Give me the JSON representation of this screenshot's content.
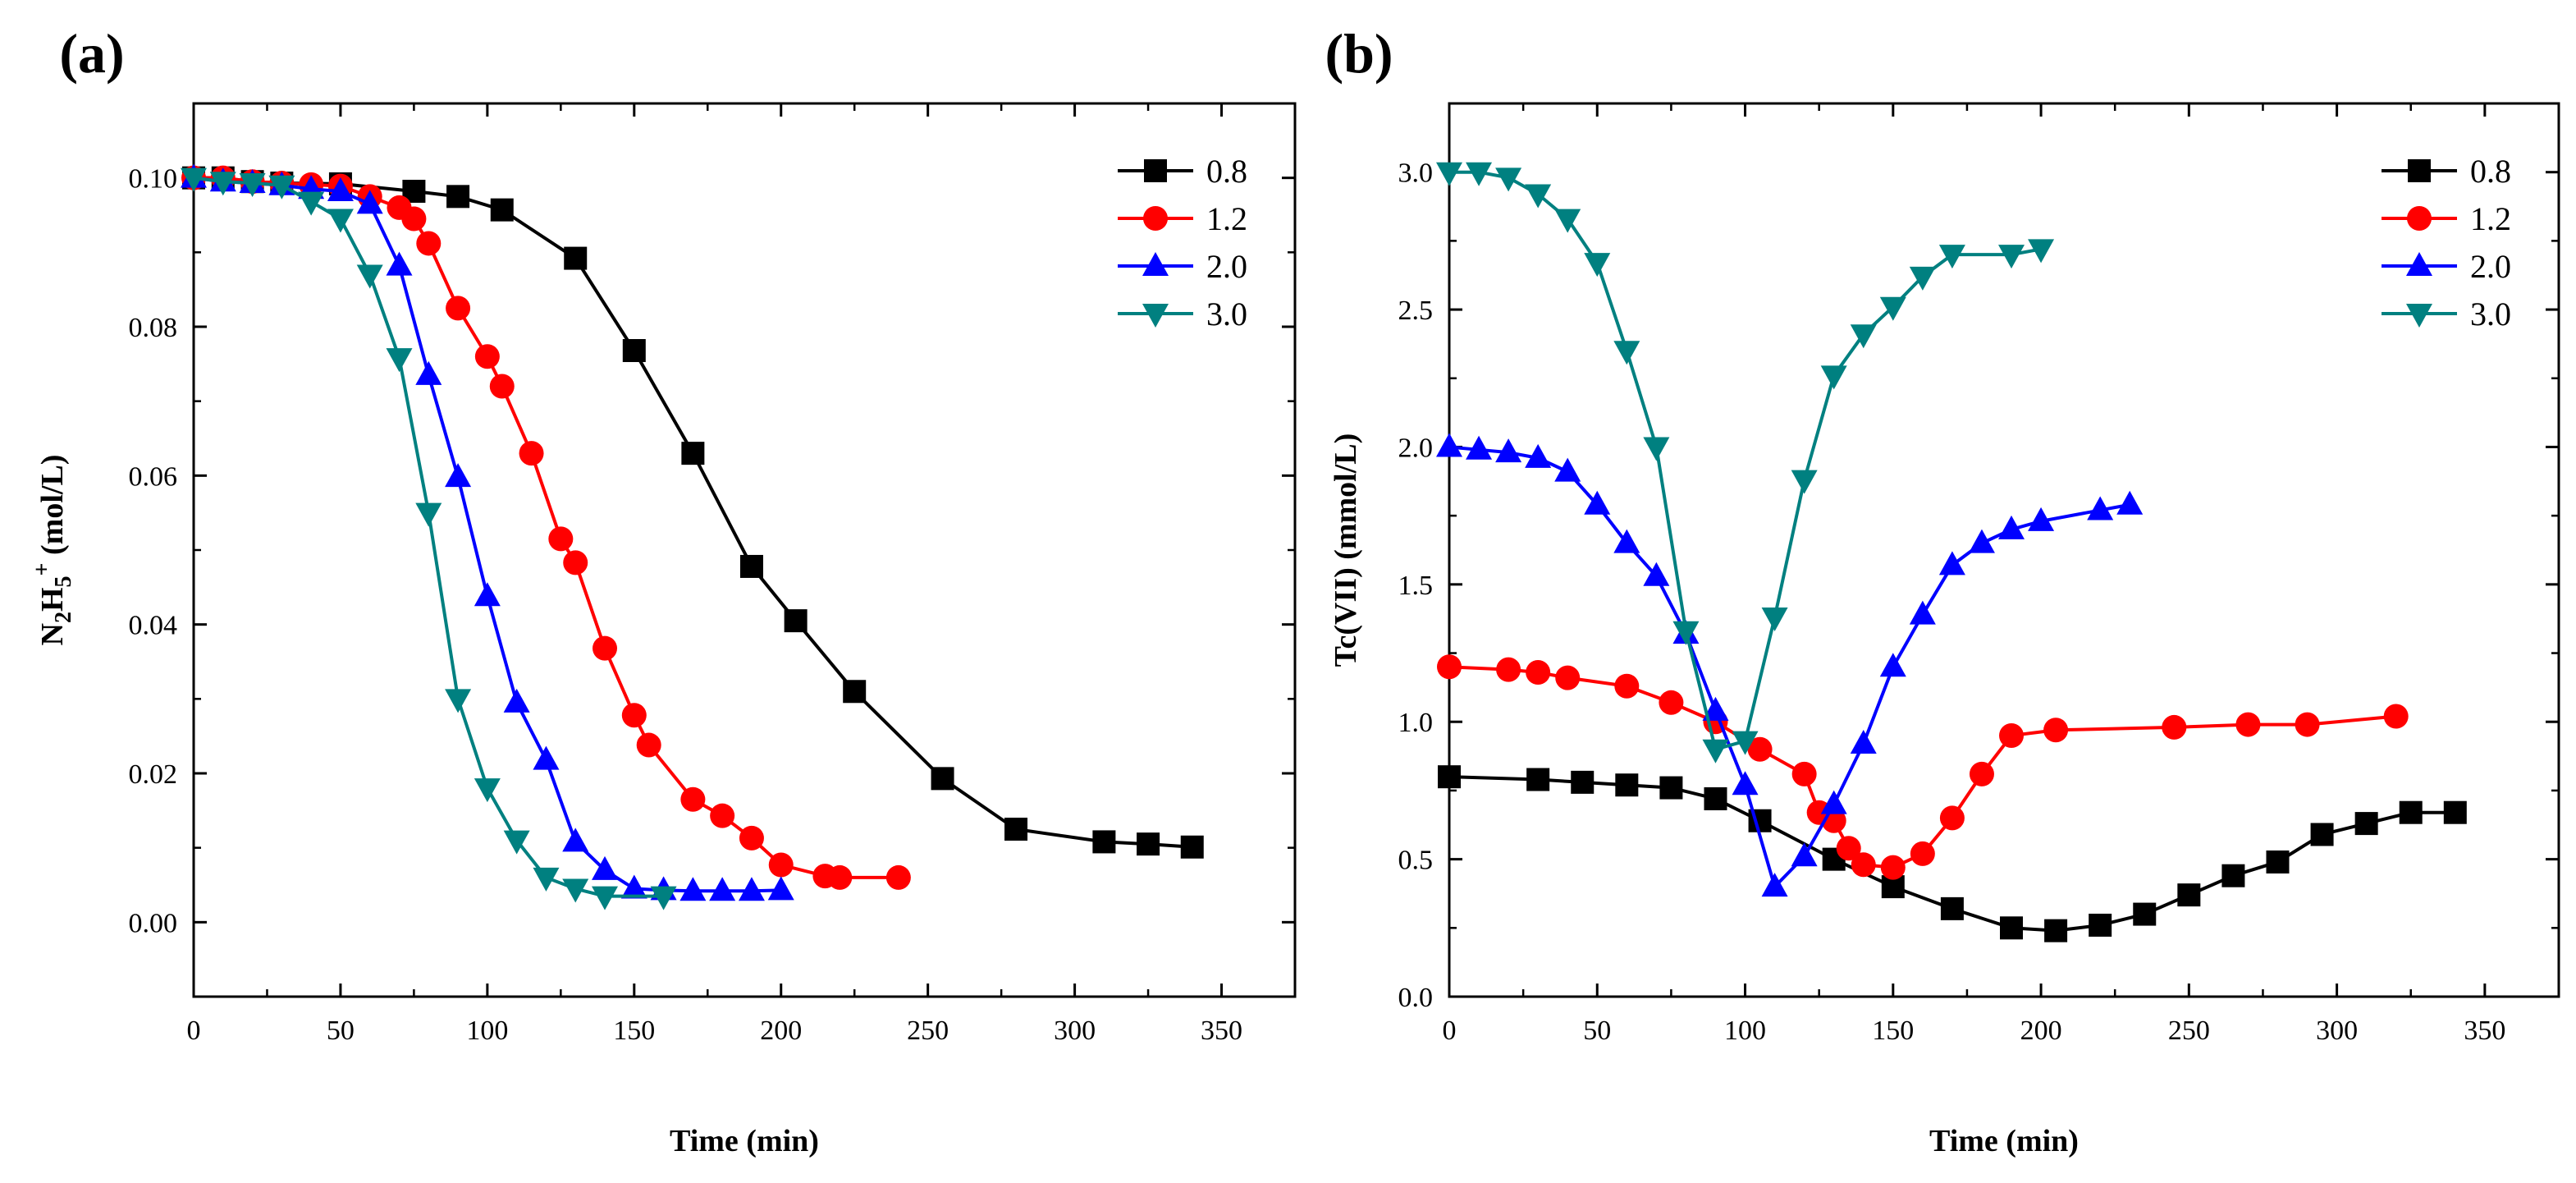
{
  "chart_data": [
    {
      "panel_label": "(a)",
      "type": "line",
      "xlabel": "Time (min)",
      "ylabel": "N2H5+ (mol/L)",
      "ylabel_parts": {
        "base1": "N",
        "sub1": "2",
        "base2": "H",
        "sub2": "5",
        "sup": "+",
        "unit": " (mol/L)"
      },
      "xlim": [
        0,
        375
      ],
      "ylim": [
        -0.01,
        0.11
      ],
      "xticks": [
        0,
        50,
        100,
        150,
        200,
        250,
        300,
        350
      ],
      "xtick_labels": [
        "0",
        "50",
        "100",
        "150",
        "200",
        "250",
        "300",
        "350"
      ],
      "yticks": [
        0.0,
        0.02,
        0.04,
        0.06,
        0.08,
        0.1
      ],
      "ytick_labels": [
        "0.00",
        "0.02",
        "0.04",
        "0.06",
        "0.08",
        "0.10"
      ],
      "legend_position": "top-right",
      "series": [
        {
          "name": "0.8",
          "color": "#000000",
          "marker": "square",
          "x": [
            0,
            10,
            20,
            30,
            50,
            75,
            90,
            105,
            130,
            150,
            170,
            190,
            205,
            225,
            255,
            280,
            310,
            325,
            340
          ],
          "y": [
            0.1,
            0.1,
            0.0995,
            0.0993,
            0.0992,
            0.0982,
            0.0975,
            0.0957,
            0.0892,
            0.0768,
            0.063,
            0.0478,
            0.0405,
            0.031,
            0.0193,
            0.0125,
            0.0108,
            0.0105,
            0.0101
          ]
        },
        {
          "name": "1.2",
          "color": "#ff0000",
          "marker": "circle",
          "x": [
            0,
            10,
            20,
            30,
            40,
            50,
            60,
            70,
            75,
            80,
            90,
            100,
            105,
            115,
            125,
            130,
            140,
            150,
            155,
            170,
            180,
            190,
            200,
            215,
            220,
            240
          ],
          "y": [
            0.1,
            0.1,
            0.0995,
            0.0993,
            0.0991,
            0.0989,
            0.0975,
            0.096,
            0.0945,
            0.0912,
            0.0825,
            0.076,
            0.072,
            0.063,
            0.0515,
            0.0483,
            0.0368,
            0.0278,
            0.0238,
            0.0165,
            0.0143,
            0.0113,
            0.0077,
            0.0062,
            0.006,
            0.006
          ]
        },
        {
          "name": "2.0",
          "color": "#0000ff",
          "marker": "triangle-up",
          "x": [
            0,
            10,
            20,
            30,
            40,
            50,
            60,
            70,
            80,
            90,
            100,
            110,
            120,
            130,
            140,
            150,
            160,
            170,
            180,
            190,
            200
          ],
          "y": [
            0.1,
            0.0995,
            0.0993,
            0.099,
            0.0985,
            0.0982,
            0.0965,
            0.0882,
            0.0735,
            0.0598,
            0.0438,
            0.0295,
            0.0218,
            0.0108,
            0.007,
            0.0045,
            0.0043,
            0.0042,
            0.0042,
            0.0042,
            0.0043
          ]
        },
        {
          "name": "3.0",
          "color": "#008080",
          "marker": "triangle-down",
          "x": [
            0,
            10,
            20,
            30,
            40,
            50,
            60,
            70,
            80,
            90,
            100,
            110,
            120,
            130,
            140,
            160
          ],
          "y": [
            0.1,
            0.0995,
            0.0993,
            0.099,
            0.0968,
            0.0945,
            0.087,
            0.0758,
            0.055,
            0.03,
            0.018,
            0.011,
            0.006,
            0.0045,
            0.0035,
            0.0035
          ]
        }
      ]
    },
    {
      "panel_label": "(b)",
      "type": "line",
      "xlabel": "Time (min)",
      "ylabel": "Tc(VII) (mmol/L)",
      "xlim": [
        0,
        375
      ],
      "ylim": [
        0,
        3.25
      ],
      "xticks": [
        0,
        50,
        100,
        150,
        200,
        250,
        300,
        350
      ],
      "xtick_labels": [
        "0",
        "50",
        "100",
        "150",
        "200",
        "250",
        "300",
        "350"
      ],
      "yticks": [
        0.0,
        0.5,
        1.0,
        1.5,
        2.0,
        2.5,
        3.0
      ],
      "ytick_labels": [
        "0.0",
        "0.5",
        "1.0",
        "1.5",
        "2.0",
        "2.5",
        "3.0"
      ],
      "legend_position": "top-right",
      "series": [
        {
          "name": "0.8",
          "color": "#000000",
          "marker": "square",
          "x": [
            0,
            30,
            45,
            60,
            75,
            90,
            105,
            130,
            150,
            170,
            190,
            205,
            220,
            235,
            250,
            265,
            280,
            295,
            310,
            325,
            340
          ],
          "y": [
            0.8,
            0.79,
            0.78,
            0.77,
            0.76,
            0.72,
            0.64,
            0.5,
            0.4,
            0.32,
            0.25,
            0.24,
            0.26,
            0.3,
            0.37,
            0.44,
            0.49,
            0.59,
            0.63,
            0.67,
            0.67
          ]
        },
        {
          "name": "1.2",
          "color": "#ff0000",
          "marker": "circle",
          "x": [
            0,
            20,
            30,
            40,
            60,
            75,
            90,
            105,
            120,
            125,
            130,
            135,
            140,
            150,
            160,
            170,
            180,
            190,
            205,
            245,
            270,
            290,
            320
          ],
          "y": [
            1.2,
            1.19,
            1.18,
            1.16,
            1.13,
            1.07,
            1.0,
            0.9,
            0.81,
            0.67,
            0.64,
            0.54,
            0.48,
            0.47,
            0.52,
            0.65,
            0.81,
            0.95,
            0.97,
            0.98,
            0.99,
            0.99,
            1.02
          ]
        },
        {
          "name": "2.0",
          "color": "#0000ff",
          "marker": "triangle-up",
          "x": [
            0,
            10,
            20,
            30,
            40,
            50,
            60,
            70,
            80,
            90,
            100,
            110,
            120,
            130,
            140,
            150,
            160,
            170,
            180,
            190,
            200,
            220,
            230
          ],
          "y": [
            2.0,
            1.99,
            1.98,
            1.96,
            1.91,
            1.79,
            1.65,
            1.53,
            1.32,
            1.04,
            0.77,
            0.4,
            0.51,
            0.7,
            0.92,
            1.2,
            1.39,
            1.57,
            1.65,
            1.7,
            1.73,
            1.77,
            1.79
          ]
        },
        {
          "name": "3.0",
          "color": "#008080",
          "marker": "triangle-down",
          "x": [
            0,
            10,
            20,
            30,
            40,
            50,
            60,
            70,
            80,
            90,
            100,
            110,
            120,
            130,
            140,
            150,
            160,
            170,
            190,
            200
          ],
          "y": [
            3.0,
            3.0,
            2.98,
            2.92,
            2.83,
            2.67,
            2.35,
            2.0,
            1.33,
            0.9,
            0.93,
            1.38,
            1.88,
            2.26,
            2.41,
            2.51,
            2.62,
            2.7,
            2.7,
            2.72
          ]
        }
      ]
    }
  ]
}
